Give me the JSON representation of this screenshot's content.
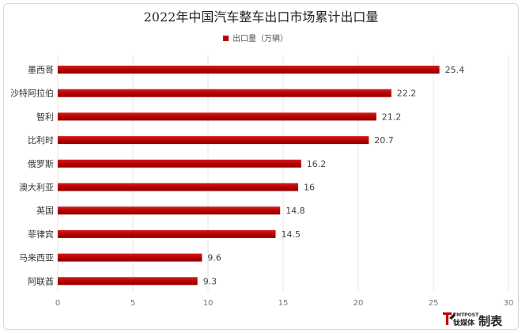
{
  "chart_data": {
    "type": "bar",
    "orientation": "horizontal",
    "title": "2022年中国汽车整车出口市场累计出口量",
    "categories": [
      "墨西哥",
      "沙特阿拉伯",
      "智利",
      "比利时",
      "俄罗斯",
      "澳大利亚",
      "英国",
      "菲律宾",
      "马来西亚",
      "阿联酋"
    ],
    "series": [
      {
        "name": "出口量（万辆）",
        "values": [
          25.4,
          22.2,
          21.2,
          20.7,
          16.2,
          16,
          14.8,
          14.5,
          9.6,
          9.3
        ]
      }
    ],
    "value_labels": [
      "25.4",
      "22.2",
      "21.2",
      "20.7",
      "16.2",
      "16",
      "14.8",
      "14.5",
      "9.6",
      "9.3"
    ],
    "xlim": [
      0,
      30
    ],
    "xticks": [
      0,
      5,
      10,
      15,
      20,
      25,
      30
    ],
    "grid": true,
    "legend_position": "top-center",
    "color": "#c00000"
  },
  "branding": {
    "logo_small": "TMTPOST",
    "logo_cn": "钛媒体",
    "label": "制表"
  }
}
